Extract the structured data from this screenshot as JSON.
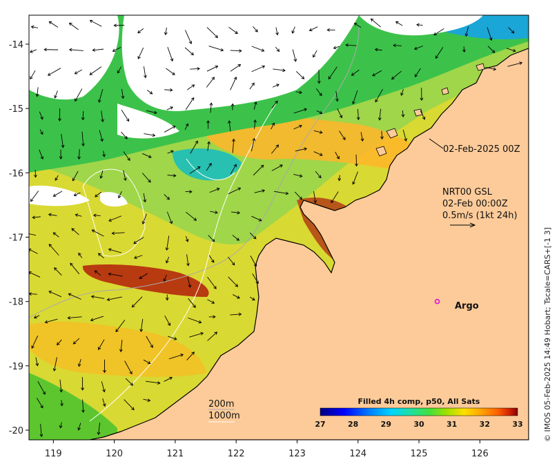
{
  "map": {
    "frame_date_label": "02-Feb-2025 00Z",
    "current_info": {
      "line1": "NRT00 GSL",
      "line2": "02-Feb 00:00Z",
      "line3": "0.5m/s (1kt 24h)"
    },
    "argo_label": "Argo",
    "isobath_labels": {
      "shallow": "200m",
      "deep": "1000m"
    },
    "credit": "© IMOS 05-Feb-2025 14:49 Hobart; Tscale=CARS+[-1 3]",
    "longitude_ticks": [
      "119",
      "120",
      "121",
      "122",
      "123",
      "124",
      "125",
      "126"
    ],
    "latitude_ticks": [
      "-14",
      "-15",
      "-16",
      "-17",
      "-18",
      "-19",
      "-20"
    ],
    "lon_range": [
      118.6,
      126.8
    ],
    "lat_range": [
      -20.15,
      -13.55
    ],
    "argo_position": {
      "lon": 125.3,
      "lat": -18.0
    },
    "colors": {
      "land": "#fdcb99",
      "coast": "#000000",
      "argo_marker": "#e000e0",
      "isobath_200": "#aaaaaa",
      "isobath_1000": "#ffffff"
    }
  },
  "colorbar": {
    "title": "Filled 4h comp, p50, All Sats",
    "ticks": [
      "27",
      "28",
      "29",
      "30",
      "31",
      "32",
      "33"
    ],
    "range": [
      27,
      33
    ],
    "colors": [
      "#00007f",
      "#0000ff",
      "#007fff",
      "#00d4ff",
      "#20e0a0",
      "#40e040",
      "#a0e000",
      "#ffe000",
      "#ffa000",
      "#ff6000",
      "#d02000",
      "#800000"
    ]
  }
}
